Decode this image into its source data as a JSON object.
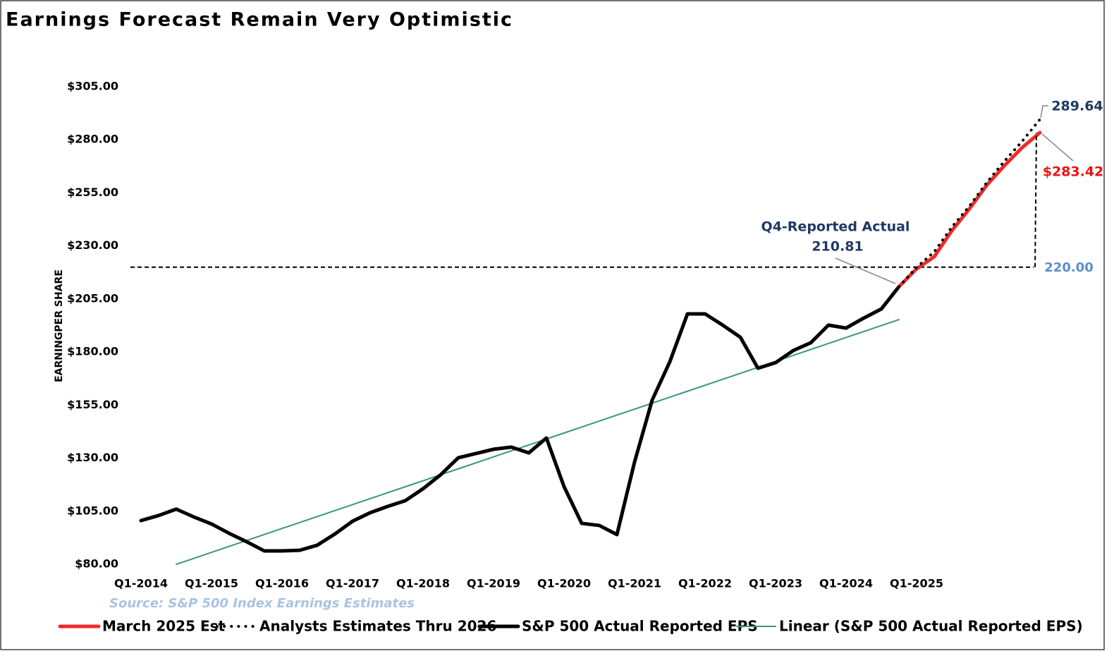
{
  "chart_data": {
    "type": "line",
    "title": "Earnings Forecast Remain Very Optimistic",
    "y_label": "EARNINGPER SHARE",
    "source": "Source: S&P 500 Index Earnings Estimates",
    "categories": [
      "Q1-2014",
      null,
      null,
      null,
      "Q1-2015",
      null,
      null,
      null,
      "Q1-2016",
      null,
      null,
      null,
      "Q1-2017",
      null,
      null,
      null,
      "Q1-2018",
      null,
      null,
      null,
      "Q1-2019",
      null,
      null,
      null,
      "Q1-2020",
      null,
      null,
      null,
      "Q1-2021",
      null,
      null,
      null,
      "Q1-2022",
      null,
      null,
      null,
      "Q1-2023",
      null,
      null,
      null,
      "Q1-2024",
      null,
      null,
      null,
      "Q1-2025",
      null,
      null,
      null,
      null,
      null,
      null,
      null
    ],
    "ylim": [
      80,
      305
    ],
    "yticks": [
      {
        "value": 80,
        "label": "$80.00"
      },
      {
        "value": 105,
        "label": "$105.00"
      },
      {
        "value": 130,
        "label": "$130.00"
      },
      {
        "value": 155,
        "label": "$155.00"
      },
      {
        "value": 180,
        "label": "$180.00"
      },
      {
        "value": 205,
        "label": "$205.00"
      },
      {
        "value": 230,
        "label": "$230.00"
      },
      {
        "value": 255,
        "label": "$255.00"
      },
      {
        "value": 280,
        "label": "$280.00"
      },
      {
        "value": 305,
        "label": "$305.00"
      }
    ],
    "grid": false,
    "legend": "bottom",
    "series": [
      {
        "name": "March 2025 Est",
        "color": "#ee2b2b",
        "line_style": "solid",
        "linewidth": 5,
        "values": [
          null,
          null,
          null,
          null,
          null,
          null,
          null,
          null,
          null,
          null,
          null,
          null,
          null,
          null,
          null,
          null,
          null,
          null,
          null,
          null,
          null,
          null,
          null,
          null,
          null,
          null,
          null,
          null,
          null,
          null,
          null,
          null,
          null,
          null,
          null,
          null,
          null,
          null,
          null,
          null,
          null,
          null,
          null,
          210.81,
          219.2,
          224.9,
          237.2,
          247.5,
          258.8,
          268,
          276.4,
          283.42
        ]
      },
      {
        "name": "Analysts Estimates Thru 2026",
        "color": "#000000",
        "line_style": "dotted",
        "linewidth": 4,
        "values": [
          null,
          null,
          null,
          null,
          null,
          null,
          null,
          null,
          null,
          null,
          null,
          null,
          null,
          null,
          null,
          null,
          null,
          null,
          null,
          null,
          null,
          null,
          null,
          null,
          null,
          null,
          null,
          null,
          null,
          null,
          null,
          null,
          null,
          null,
          null,
          null,
          null,
          null,
          null,
          null,
          null,
          null,
          null,
          210.81,
          219.9,
          227.2,
          238.9,
          248.8,
          260.1,
          270.1,
          279.4,
          289.64
        ]
      },
      {
        "name": "S&P 500 Actual Reported EPS",
        "color": "#000000",
        "line_style": "solid",
        "linewidth": 5,
        "values": [
          100.6,
          103,
          106,
          102.3,
          99,
          94.6,
          90.6,
          86.3,
          86.3,
          86.6,
          89,
          94.3,
          100.3,
          104.3,
          107.3,
          110,
          115.6,
          122.2,
          130.2,
          132.2,
          134.2,
          135.2,
          132.5,
          139.5,
          116.6,
          99.3,
          98.3,
          94,
          128.2,
          157.4,
          175.4,
          198,
          198,
          192.7,
          187,
          172.4,
          175,
          180.7,
          184.4,
          192.7,
          191.3,
          196,
          200.3,
          210.81,
          null,
          null,
          null,
          null,
          null,
          null,
          null,
          null
        ]
      },
      {
        "name": "Linear (S&P 500 Actual Reported EPS)",
        "color": "#3a9483",
        "line_style": "solid",
        "linewidth": 2,
        "values": [
          null,
          null,
          80,
          82.81,
          85.62,
          88.44,
          91.25,
          94.06,
          96.87,
          99.68,
          102.5,
          105.31,
          108.12,
          110.93,
          113.74,
          116.56,
          119.37,
          122.18,
          124.99,
          127.8,
          130.62,
          133.43,
          136.24,
          139.05,
          141.86,
          144.68,
          147.49,
          150.3,
          153.11,
          155.92,
          158.74,
          161.55,
          164.36,
          167.17,
          169.98,
          172.8,
          175.61,
          178.42,
          181.23,
          184.04,
          186.86,
          189.67,
          192.48,
          195.3,
          null,
          null,
          null,
          null,
          null,
          null,
          null,
          null
        ]
      }
    ],
    "reference_line": {
      "value": 220,
      "label": "220.00"
    },
    "annotations": [
      {
        "text": "Q4-Reported Actual",
        "value": 210.81
      },
      {
        "value": 289.64
      },
      {
        "value": 283.42,
        "label": "$283.42"
      }
    ]
  }
}
